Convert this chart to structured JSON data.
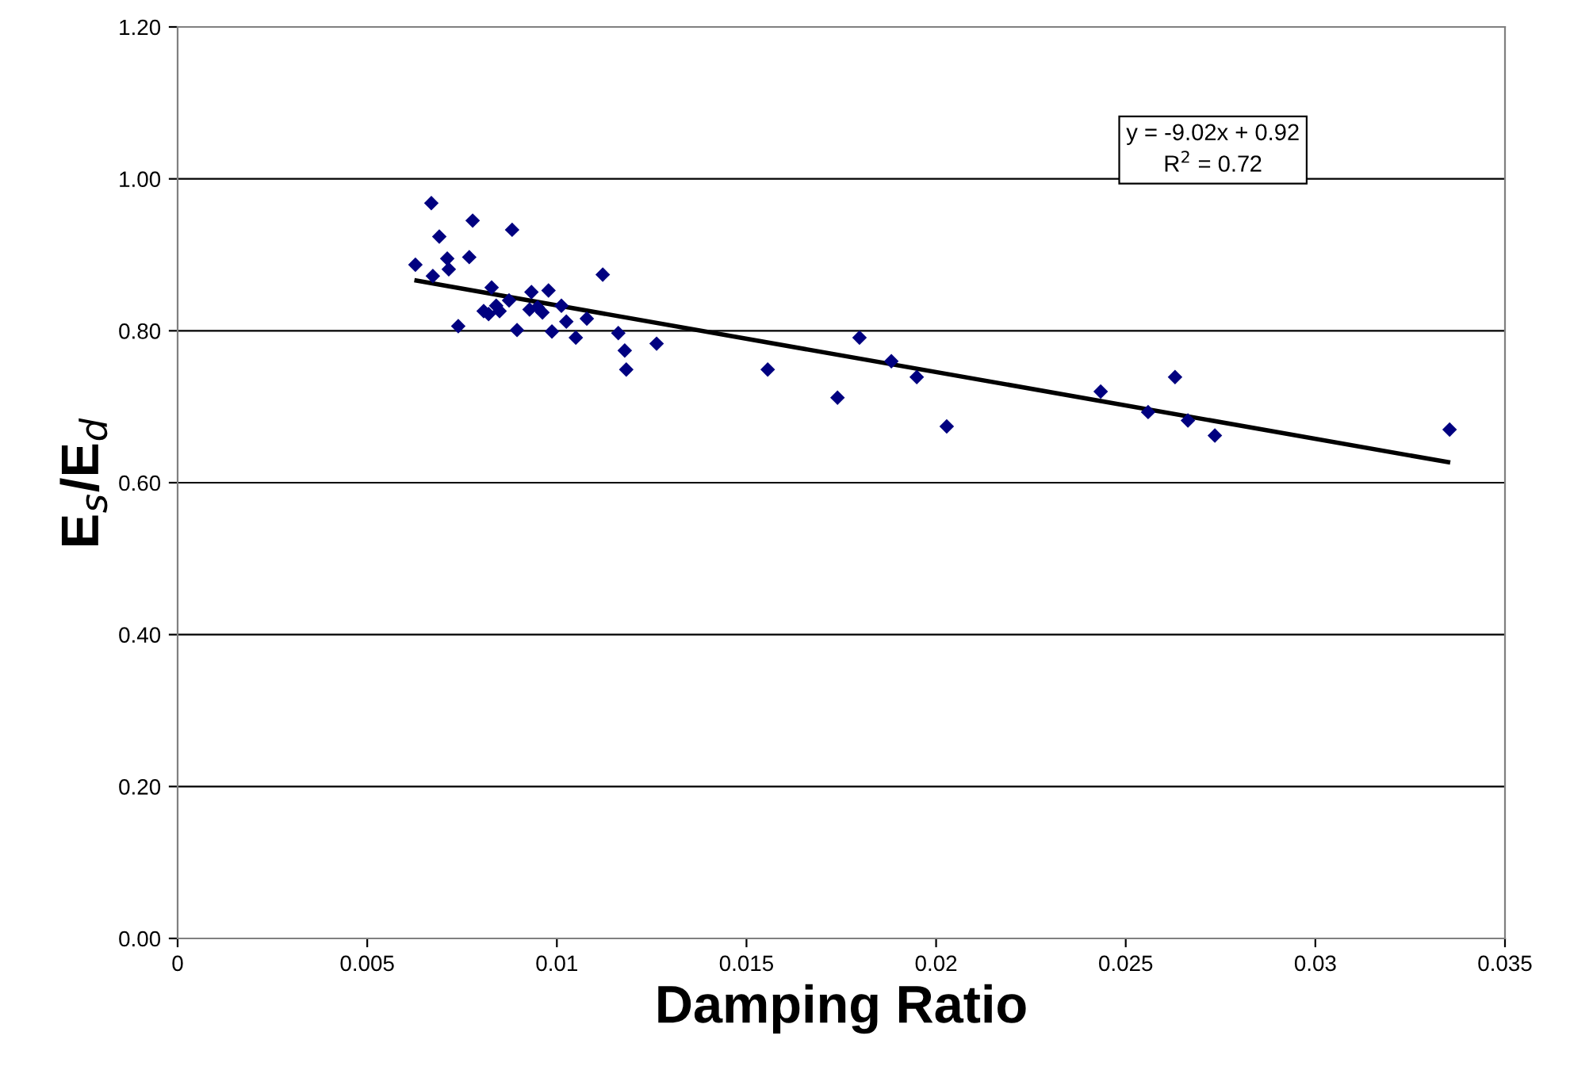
{
  "chart_data": {
    "type": "scatter",
    "xlabel": "Damping Ratio",
    "ylabel": "E$_{s}$/E$_{d}$",
    "annotations": [
      "y = -9.02x + 0.92",
      "R$^{2}$ = 0.72"
    ],
    "series": [
      {
        "color": "#000080",
        "marker": "diamond",
        "x": [
          0.00669,
          0.0069,
          0.00778,
          0.00882,
          0.00627,
          0.00711,
          0.00769,
          0.00673,
          0.00715,
          0.01121,
          0.00828,
          0.00933,
          0.00978,
          0.00874,
          0.00807,
          0.0082,
          0.0084,
          0.00849,
          0.00928,
          0.00949,
          0.00962,
          0.01012,
          0.01079,
          0.01025,
          0.0074,
          0.00895,
          0.00987,
          0.0105,
          0.01162,
          0.01179,
          0.01263,
          0.01183,
          0.01556,
          0.0174,
          0.01798,
          0.01882,
          0.01949,
          0.02028,
          0.02434,
          0.02559,
          0.0263,
          0.02664,
          0.02735,
          0.03354
        ],
        "values": [
          0.968,
          0.924,
          0.945,
          0.933,
          0.887,
          0.895,
          0.897,
          0.872,
          0.881,
          0.874,
          0.857,
          0.851,
          0.853,
          0.84,
          0.826,
          0.822,
          0.833,
          0.826,
          0.828,
          0.831,
          0.824,
          0.833,
          0.816,
          0.812,
          0.806,
          0.801,
          0.799,
          0.791,
          0.797,
          0.774,
          0.783,
          0.749,
          0.749,
          0.712,
          0.791,
          0.76,
          0.739,
          0.674,
          0.72,
          0.693,
          0.739,
          0.682,
          0.662,
          0.67
        ]
      },
      {
        "type": "line",
        "color": "#000000",
        "line_style": "solid",
        "x": [
          0.0063,
          0.0335
        ],
        "values": [
          0.866,
          0.627
        ]
      }
    ],
    "xlim": [
      0,
      0.035
    ],
    "ylim": [
      0,
      1.2
    ],
    "xticks": [
      0,
      0.005,
      0.01,
      0.015,
      0.02,
      0.025,
      0.03,
      0.035
    ],
    "yticks": [
      {
        "value": 0,
        "label": "0.00"
      },
      {
        "value": 0.2,
        "label": "0.20"
      },
      {
        "value": 0.4,
        "label": "0.40"
      },
      {
        "value": 0.6,
        "label": "0.60"
      },
      {
        "value": 0.8,
        "label": "0.80"
      },
      {
        "value": 1.0,
        "label": "1.00"
      },
      {
        "value": 1.2,
        "label": "1.20"
      }
    ],
    "grid": "y",
    "legend": false
  }
}
